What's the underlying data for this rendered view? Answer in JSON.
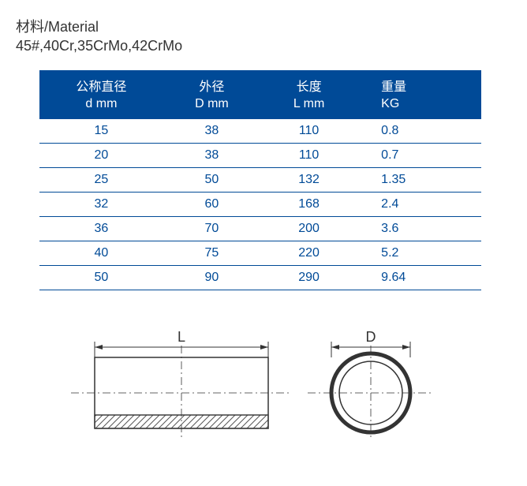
{
  "material": {
    "label": "材料/Material",
    "value": "45#,40Cr,35CrMo,42CrMo"
  },
  "table": {
    "headers": [
      {
        "line1": "公称直径",
        "line2": "d mm"
      },
      {
        "line1": "外径",
        "line2": "D mm"
      },
      {
        "line1": "长度",
        "line2": "L mm"
      },
      {
        "line1": "重量",
        "line2": "KG"
      }
    ],
    "rows": [
      [
        "15",
        "38",
        "110",
        "0.8"
      ],
      [
        "20",
        "38",
        "110",
        "0.7"
      ],
      [
        "25",
        "50",
        "132",
        "1.35"
      ],
      [
        "32",
        "60",
        "168",
        "2.4"
      ],
      [
        "36",
        "70",
        "200",
        "3.6"
      ],
      [
        "40",
        "75",
        "220",
        "5.2"
      ],
      [
        "50",
        "90",
        "290",
        "9.64"
      ]
    ],
    "header_bg": "#004a97",
    "header_text_color": "#ffffff",
    "cell_text_color": "#004a97",
    "border_color": "#004a97"
  },
  "diagram": {
    "label_L": "L",
    "label_D": "D",
    "stroke_color": "#333333",
    "stroke_width": 1.2,
    "hatch_color": "#555555"
  }
}
